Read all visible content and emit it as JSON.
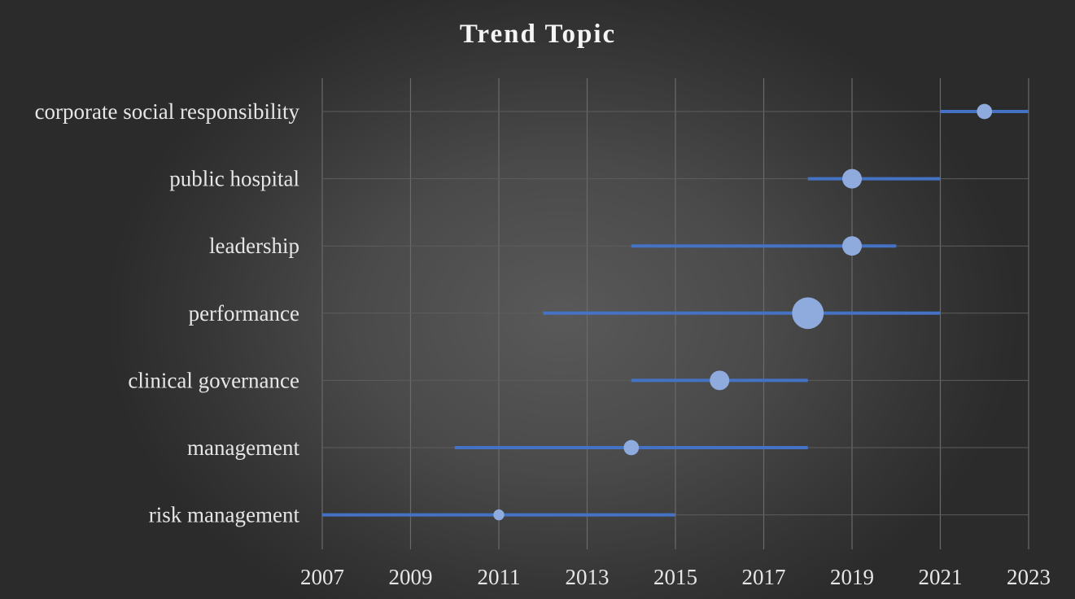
{
  "chart_data": {
    "type": "scatter",
    "title": "Trend Topic",
    "xlabel": "",
    "ylabel": "",
    "xlim": [
      2007,
      2023
    ],
    "x_ticks": [
      2007,
      2009,
      2011,
      2013,
      2015,
      2017,
      2019,
      2021,
      2023
    ],
    "grid": true,
    "legend": "none",
    "series_color": "#4472c4",
    "marker_color": "#8faadc",
    "categories": [
      "corporate social responsibility",
      "public hospital",
      "leadership",
      "performance",
      "clinical governance",
      "management",
      "risk management"
    ],
    "ranges": [
      {
        "topic": "corporate social responsibility",
        "start": 2021,
        "end": 2023,
        "median": 2022,
        "weight": 1.5
      },
      {
        "topic": "public hospital",
        "start": 2018,
        "end": 2021,
        "median": 2019,
        "weight": 3
      },
      {
        "topic": "leadership",
        "start": 2014,
        "end": 2020,
        "median": 2019,
        "weight": 3
      },
      {
        "topic": "performance",
        "start": 2012,
        "end": 2021,
        "median": 2018,
        "weight": 10
      },
      {
        "topic": "clinical governance",
        "start": 2014,
        "end": 2018,
        "median": 2016,
        "weight": 3
      },
      {
        "topic": "management",
        "start": 2010,
        "end": 2018,
        "median": 2014,
        "weight": 1.5
      },
      {
        "topic": "risk management",
        "start": 2007,
        "end": 2015,
        "median": 2011,
        "weight": 0.5
      }
    ]
  }
}
